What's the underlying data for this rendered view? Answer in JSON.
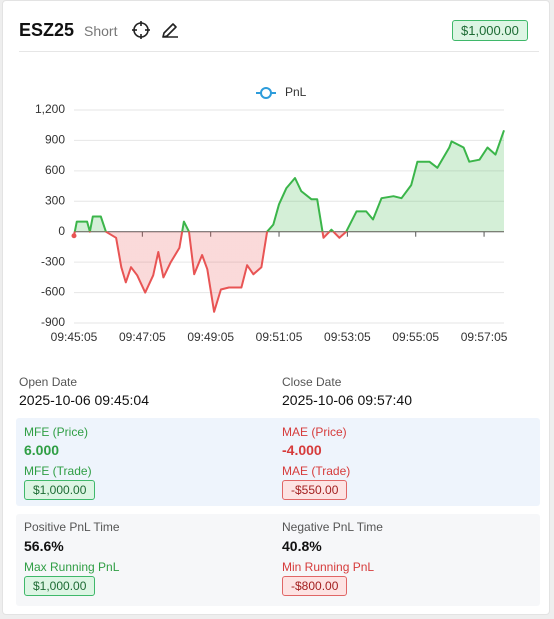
{
  "header": {
    "symbol": "ESZ25",
    "side": "Short",
    "pnl": "$1,000.00"
  },
  "chart_data": {
    "type": "line",
    "series": [
      {
        "name": "PnL",
        "color": "#3bb54a",
        "negative_color": "#e85454",
        "legend_color": "#2d9cdb",
        "values": [
          -40,
          100,
          100,
          0,
          150,
          150,
          0,
          -60,
          -350,
          -500,
          -350,
          -430,
          -600,
          -430,
          -200,
          -450,
          -300,
          -160,
          100,
          0,
          -420,
          -230,
          -370,
          -790,
          -570,
          -550,
          -550,
          -330,
          -420,
          -350,
          0,
          70,
          270,
          430,
          530,
          400,
          320,
          320,
          -60,
          20,
          -60,
          0,
          200,
          200,
          120,
          330,
          350,
          330,
          460,
          690,
          690,
          630,
          830,
          890,
          830,
          690,
          710,
          830,
          760,
          1000
        ]
      }
    ],
    "x": [
      "09:45:05",
      "09:45:10",
      "09:45:28",
      "09:45:33",
      "09:45:38",
      "09:45:52",
      "09:46:01",
      "09:46:19",
      "09:46:28",
      "09:46:36",
      "09:46:45",
      "09:46:56",
      "09:47:10",
      "09:47:24",
      "09:47:33",
      "09:47:42",
      "09:47:55",
      "09:48:10",
      "09:48:18",
      "09:48:27",
      "09:48:36",
      "09:48:50",
      "09:48:59",
      "09:49:11",
      "09:49:23",
      "09:49:37",
      "09:49:59",
      "09:50:09",
      "09:50:20",
      "09:50:34",
      "09:50:44",
      "09:50:55",
      "09:51:05",
      "09:51:18",
      "09:51:33",
      "09:51:44",
      "09:52:02",
      "09:52:12",
      "09:52:23",
      "09:52:37",
      "09:52:51",
      "09:53:03",
      "09:53:21",
      "09:53:38",
      "09:53:50",
      "09:54:05",
      "09:54:26",
      "09:54:40",
      "09:54:57",
      "09:55:08",
      "09:55:29",
      "09:55:43",
      "09:56:04",
      "09:56:08",
      "09:56:29",
      "09:56:39",
      "09:56:57",
      "09:57:11",
      "09:57:25",
      "09:57:40"
    ],
    "xlim": [
      "09:45:05",
      "09:57:40"
    ],
    "xticks": [
      "09:45:05",
      "09:47:05",
      "09:49:05",
      "09:51:05",
      "09:53:05",
      "09:55:05",
      "09:57:05"
    ],
    "ylim": [
      -900,
      1200
    ],
    "yticks": [
      -900,
      -600,
      -300,
      0,
      300,
      600,
      900,
      {
        "value": 1200,
        "label": "1,200"
      }
    ],
    "grid": true,
    "legend": "top"
  },
  "stats": {
    "open_date": {
      "label": "Open Date",
      "value": "2025-10-06 09:45:04"
    },
    "close_date": {
      "label": "Close Date",
      "value": "2025-10-06 09:57:40"
    },
    "mfe_price": {
      "label": "MFE (Price)",
      "value": "6.000"
    },
    "mae_price": {
      "label": "MAE (Price)",
      "value": "-4.000"
    },
    "mfe_trade": {
      "label": "MFE (Trade)",
      "value": "$1,000.00"
    },
    "mae_trade": {
      "label": "MAE (Trade)",
      "value": "-$550.00"
    },
    "positive_time": {
      "label": "Positive PnL Time",
      "value": "56.6%"
    },
    "negative_time": {
      "label": "Negative PnL Time",
      "value": "40.8%"
    },
    "max_running": {
      "label": "Max Running PnL",
      "value": "$1,000.00"
    },
    "min_running": {
      "label": "Min Running PnL",
      "value": "-$800.00"
    }
  }
}
